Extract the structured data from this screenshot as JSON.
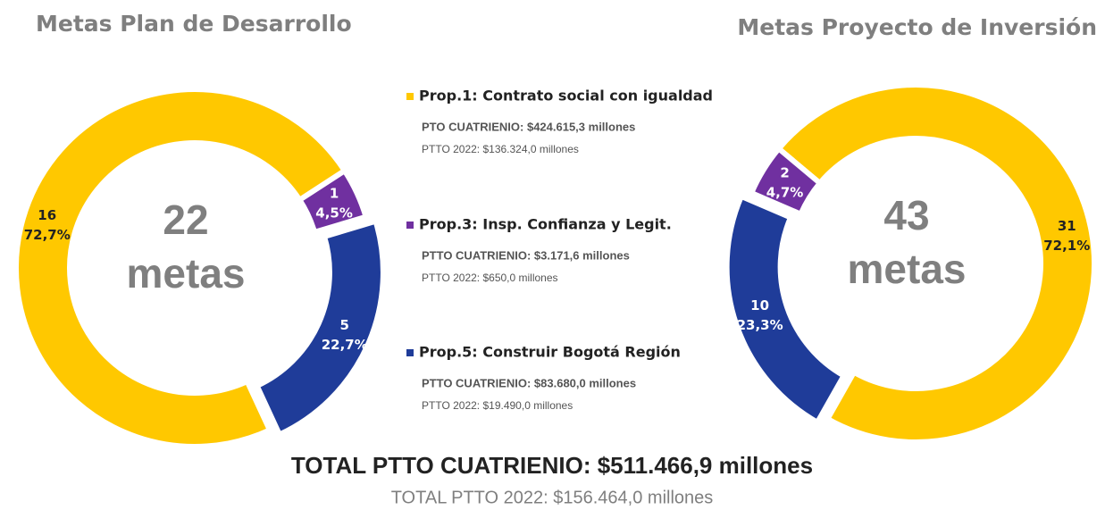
{
  "chart_data": [
    {
      "type": "donut",
      "title": "Metas Plan de Desarrollo",
      "categories": [
        "Prop.1: Contrato social con igualdad",
        "Prop.3: Insp. Confianza y Legit.",
        "Prop.5: Construir Bogotá Región"
      ],
      "colors": [
        "#FFC800",
        "#7030A0",
        "#1F3C99"
      ],
      "values": [
        16,
        1,
        5
      ],
      "percents": [
        72.7,
        4.5,
        22.7
      ],
      "percent_labels": [
        "72,7%",
        "4,5%",
        "22,7%"
      ],
      "center_value": 22,
      "center_label": "metas"
    },
    {
      "type": "donut",
      "title": "Metas Proyecto de Inversión",
      "categories": [
        "Prop.1: Contrato social con igualdad",
        "Prop.3: Insp. Confianza y Legit.",
        "Prop.5: Construir Bogotá Región"
      ],
      "colors": [
        "#FFC800",
        "#7030A0",
        "#1F3C99"
      ],
      "values": [
        31,
        2,
        10
      ],
      "percents": [
        72.1,
        4.7,
        23.3
      ],
      "percent_labels": [
        "72,1%",
        "4,7%",
        "23,3%"
      ],
      "center_value": 43,
      "center_label": "metas"
    }
  ],
  "legend": [
    {
      "name": "Prop.1: Contrato social con igualdad",
      "color": "#FFC800",
      "cuatrienio": "PTO CUATRIENIO: $424.615,3 millones",
      "ptto_2022": "PTTO 2022: $136.324,0 millones"
    },
    {
      "name": "Prop.3: Insp. Confianza y Legit.",
      "color": "#7030A0",
      "cuatrienio": "PTTO CUATRIENIO: $3.171,6 millones",
      "ptto_2022": "PTTO 2022: $650,0 millones"
    },
    {
      "name": "Prop.5: Construir Bogotá Región",
      "color": "#1F3C99",
      "cuatrienio": "PTTO CUATRIENIO: $83.680,0 millones",
      "ptto_2022": "PTTO 2022: $19.490,0 millones"
    }
  ],
  "totals": {
    "cuatrienio": "TOTAL PTTO CUATRIENIO: $511.466,9 millones",
    "ptto_2022": "TOTAL PTTO 2022: $156.464,0 millones"
  }
}
